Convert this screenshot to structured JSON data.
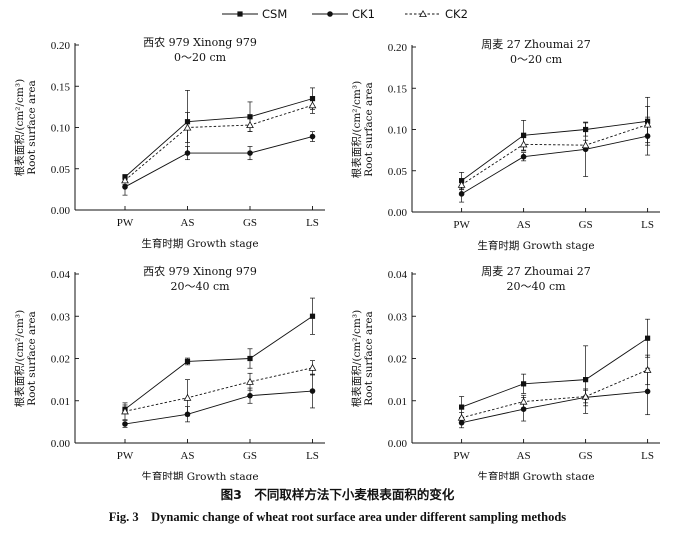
{
  "legend": [
    {
      "name": "CSM",
      "marker": "square",
      "dash": "solid"
    },
    {
      "name": "CK1",
      "marker": "circle",
      "dash": "solid"
    },
    {
      "name": "CK2",
      "marker": "triangle",
      "dash": "dashed"
    }
  ],
  "caption": {
    "zh": "图3　不同取样方法下小麦根表面积的变化",
    "en": "Fig. 3　Dynamic change of wheat root surface area under different sampling methods"
  },
  "chart_data": [
    {
      "type": "line",
      "title": "西农 979 Xinong 979",
      "subtitle": "0～20 cm",
      "ylabel_zh": "根表面积/(cm²/cm³)",
      "ylabel_en": "Root surface area",
      "xlabel": "生育时期 Growth stage",
      "categories": [
        "PW",
        "AS",
        "GS",
        "LS"
      ],
      "ylim": [
        0,
        0.2
      ],
      "yticks": [
        "0.00",
        "0.05",
        "0.10",
        "0.15",
        "0.20"
      ],
      "series": [
        {
          "name": "CSM",
          "values": [
            0.04,
            0.107,
            0.113,
            0.135
          ],
          "err": [
            0.003,
            0.038,
            0.018,
            0.013
          ]
        },
        {
          "name": "CK1",
          "values": [
            0.028,
            0.069,
            0.069,
            0.089
          ],
          "err": [
            0.01,
            0.008,
            0.008,
            0.006
          ]
        },
        {
          "name": "CK2",
          "values": [
            0.036,
            0.1,
            0.103,
            0.127
          ],
          "err": [
            0.005,
            0.018,
            0.008,
            0.01
          ]
        }
      ]
    },
    {
      "type": "line",
      "title": "周麦 27 Zhoumai 27",
      "subtitle": "0～20 cm",
      "ylabel_zh": "根表面积/(cm²/cm³)",
      "ylabel_en": "Root surface area",
      "xlabel": "生育时期 Growth stage",
      "categories": [
        "PW",
        "AS",
        "GS",
        "LS"
      ],
      "ylim": [
        0,
        0.2
      ],
      "yticks": [
        "0.00",
        "0.05",
        "0.10",
        "0.15",
        "0.20"
      ],
      "series": [
        {
          "name": "CSM",
          "values": [
            0.038,
            0.093,
            0.1,
            0.11
          ],
          "err": [
            0.01,
            0.018,
            0.008,
            0.029
          ]
        },
        {
          "name": "CK1",
          "values": [
            0.022,
            0.067,
            0.076,
            0.092
          ],
          "err": [
            0.01,
            0.005,
            0.033,
            0.023
          ]
        },
        {
          "name": "CK2",
          "values": [
            0.033,
            0.082,
            0.081,
            0.106
          ],
          "err": [
            0.006,
            0.008,
            0.006,
            0.022
          ]
        }
      ]
    },
    {
      "type": "line",
      "title": "西农 979 Xinong 979",
      "subtitle": "20～40 cm",
      "ylabel_zh": "根表面积/(cm²/cm³)",
      "ylabel_en": "Root surface area",
      "xlabel": "生育时期 Growth stage",
      "categories": [
        "PW",
        "AS",
        "GS",
        "LS"
      ],
      "ylim": [
        0,
        0.04
      ],
      "yticks": [
        "0.00",
        "0.01",
        "0.02",
        "0.03",
        "0.04"
      ],
      "series": [
        {
          "name": "CSM",
          "values": [
            0.008,
            0.0193,
            0.02,
            0.03
          ],
          "err": [
            0.001,
            0.0008,
            0.0023,
            0.0043
          ]
        },
        {
          "name": "CK1",
          "values": [
            0.0045,
            0.0068,
            0.0112,
            0.0123
          ],
          "err": [
            0.0008,
            0.0018,
            0.0018,
            0.004
          ]
        },
        {
          "name": "CK2",
          "values": [
            0.0075,
            0.0107,
            0.0145,
            0.0178
          ],
          "err": [
            0.002,
            0.0043,
            0.002,
            0.0017
          ]
        }
      ]
    },
    {
      "type": "line",
      "title": "周麦 27 Zhoumai 27",
      "subtitle": "20～40 cm",
      "ylabel_zh": "根表面积/(cm²/cm³)",
      "ylabel_en": "Root surface area",
      "xlabel": "生育时期 Growth stage",
      "categories": [
        "PW",
        "AS",
        "GS",
        "LS"
      ],
      "ylim": [
        0,
        0.04
      ],
      "yticks": [
        "0.00",
        "0.01",
        "0.02",
        "0.03",
        "0.04"
      ],
      "series": [
        {
          "name": "CSM",
          "values": [
            0.0085,
            0.014,
            0.015,
            0.0248
          ],
          "err": [
            0.0025,
            0.0023,
            0.008,
            0.0045
          ]
        },
        {
          "name": "CK1",
          "values": [
            0.0048,
            0.008,
            0.0108,
            0.0122
          ],
          "err": [
            0.0012,
            0.0028,
            0.002,
            0.0055
          ]
        },
        {
          "name": "CK2",
          "values": [
            0.006,
            0.0098,
            0.011,
            0.0173
          ],
          "err": [
            0.0012,
            0.0015,
            0.0015,
            0.0035
          ]
        }
      ]
    }
  ]
}
